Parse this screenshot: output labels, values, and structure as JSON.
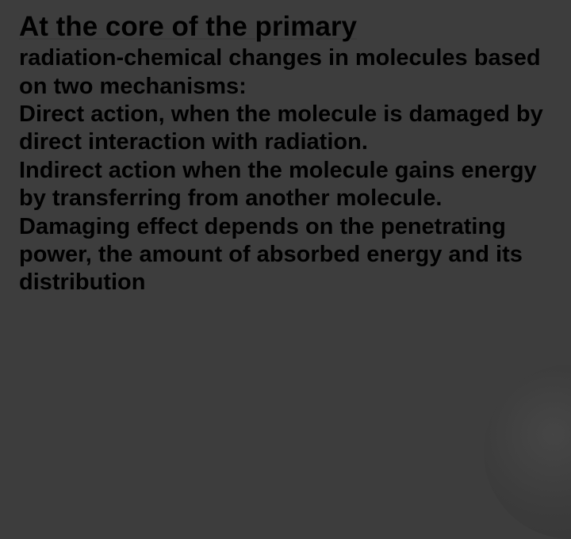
{
  "slide": {
    "title": "At the core of the primary",
    "body": "radiation-chemical changes in molecules based on two mechanisms:\nDirect action, when the molecule is damaged by direct interaction with radiation.\nIndirect action when the molecule gains energy by transferring from another molecule.\nDamaging effect depends on the penetrating power, the amount of absorbed energy and its distribution",
    "background_color": "#3d3d3d",
    "title_color": "#000000",
    "body_color": "#000000",
    "title_fontsize": 35,
    "body_fontsize": 29,
    "underline_color": "#383838"
  }
}
